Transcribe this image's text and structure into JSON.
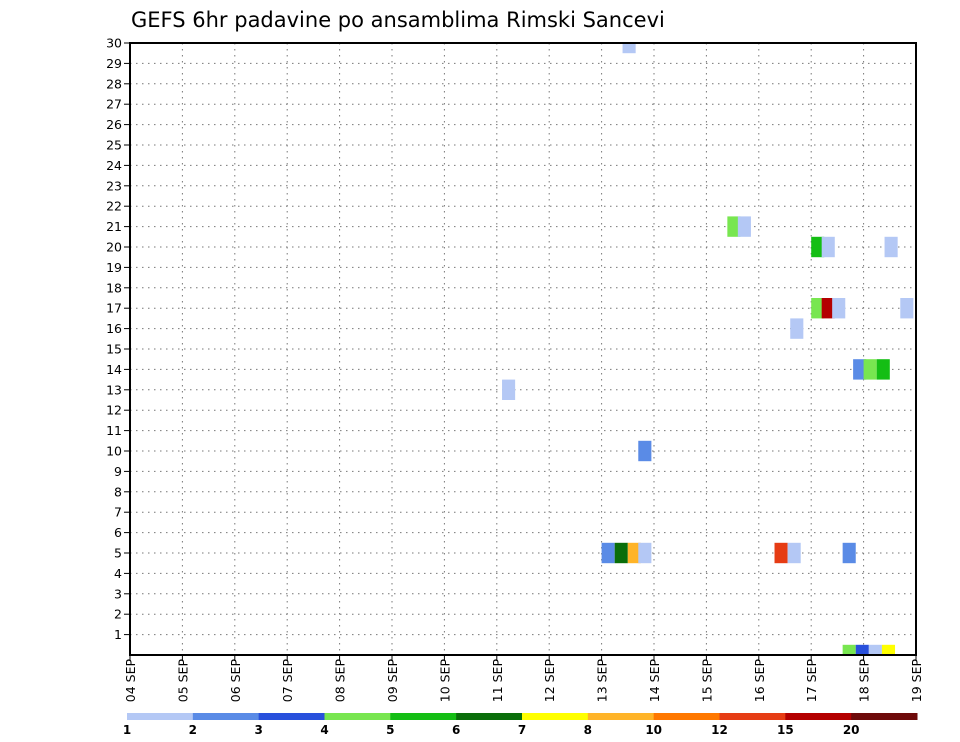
{
  "chart_data": {
    "type": "heatmap",
    "title": "GEFS 6hr padavine po ansamblima Rimski Sancevi",
    "y_ticks": [
      "1",
      "2",
      "3",
      "4",
      "5",
      "6",
      "7",
      "8",
      "9",
      "10",
      "11",
      "12",
      "13",
      "14",
      "15",
      "16",
      "17",
      "18",
      "19",
      "20",
      "21",
      "22",
      "23",
      "24",
      "25",
      "26",
      "27",
      "28",
      "29",
      "30"
    ],
    "x_ticks": [
      "04 SEP",
      "05 SEP",
      "06 SEP",
      "07 SEP",
      "08 SEP",
      "09 SEP",
      "10 SEP",
      "11 SEP",
      "12 SEP",
      "13 SEP",
      "14 SEP",
      "15 SEP",
      "16 SEP",
      "17 SEP",
      "18 SEP",
      "19 SEP"
    ],
    "x_range_days": [
      4,
      19
    ],
    "y_range": [
      0,
      30
    ],
    "grid": true,
    "legend": {
      "labels": [
        "1",
        "2",
        "3",
        "4",
        "5",
        "6",
        "7",
        "8",
        "10",
        "12",
        "15",
        "20"
      ],
      "colors": [
        "#b4c8f5",
        "#5a8be6",
        "#2850dc",
        "#78e650",
        "#14be14",
        "#0a6e0a",
        "#ffff00",
        "#ffb428",
        "#ff7800",
        "#e63c14",
        "#b40000",
        "#6e0a0a"
      ]
    },
    "cells": [
      {
        "day": 13.4,
        "member": 30,
        "color": "#b4c8f5"
      },
      {
        "day": 15.4,
        "member": 21,
        "color": "#78e650"
      },
      {
        "day": 15.6,
        "member": 21,
        "color": "#b4c8f5"
      },
      {
        "day": 17.0,
        "member": 20,
        "color": "#14be14"
      },
      {
        "day": 17.2,
        "member": 20,
        "color": "#b4c8f5"
      },
      {
        "day": 18.4,
        "member": 20,
        "color": "#b4c8f5"
      },
      {
        "day": 17.0,
        "member": 17,
        "color": "#78e650"
      },
      {
        "day": 17.2,
        "member": 17,
        "color": "#b40000"
      },
      {
        "day": 17.4,
        "member": 17,
        "color": "#b4c8f5"
      },
      {
        "day": 18.7,
        "member": 17,
        "color": "#b4c8f5"
      },
      {
        "day": 16.6,
        "member": 16,
        "color": "#b4c8f5"
      },
      {
        "day": 17.8,
        "member": 14,
        "color": "#5a8be6"
      },
      {
        "day": 18.0,
        "member": 14,
        "color": "#78e650"
      },
      {
        "day": 18.25,
        "member": 14,
        "color": "#14be14"
      },
      {
        "day": 11.1,
        "member": 13,
        "color": "#b4c8f5"
      },
      {
        "day": 13.7,
        "member": 10,
        "color": "#5a8be6"
      },
      {
        "day": 13.0,
        "member": 5,
        "color": "#5a8be6"
      },
      {
        "day": 13.25,
        "member": 5,
        "color": "#0a6e0a"
      },
      {
        "day": 13.5,
        "member": 5,
        "color": "#ffb428"
      },
      {
        "day": 13.7,
        "member": 5,
        "color": "#b4c8f5"
      },
      {
        "day": 16.3,
        "member": 5,
        "color": "#e63c14"
      },
      {
        "day": 16.55,
        "member": 5,
        "color": "#b4c8f5"
      },
      {
        "day": 17.6,
        "member": 5,
        "color": "#5a8be6"
      },
      {
        "day": 17.6,
        "member": 0,
        "color": "#78e650"
      },
      {
        "day": 17.85,
        "member": 0,
        "color": "#2850dc"
      },
      {
        "day": 18.1,
        "member": 0,
        "color": "#b4c8f5"
      },
      {
        "day": 18.35,
        "member": 0,
        "color": "#ffff00"
      }
    ]
  }
}
